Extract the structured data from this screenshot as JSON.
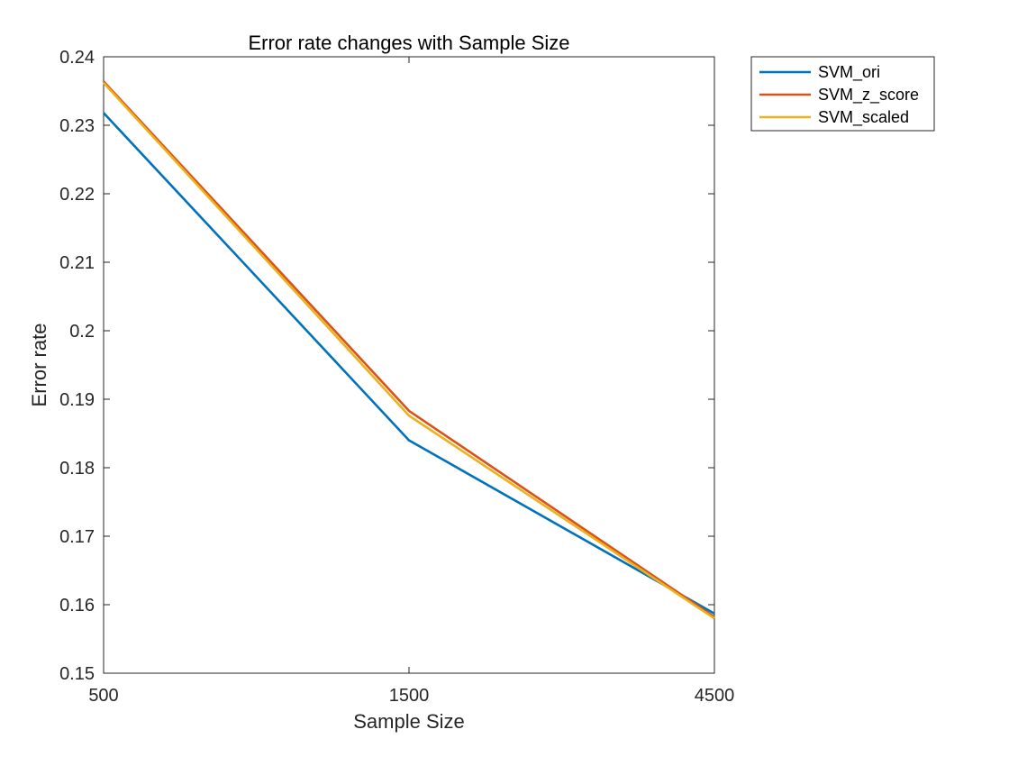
{
  "chart_data": {
    "type": "line",
    "title": "Error rate changes with Sample Size",
    "xlabel": "Sample Size",
    "ylabel": "Error rate",
    "x": [
      "500",
      "1500",
      "4500"
    ],
    "ylim": [
      0.15,
      0.24
    ],
    "yticks": [
      "0.15",
      "0.16",
      "0.17",
      "0.18",
      "0.19",
      "0.2",
      "0.21",
      "0.22",
      "0.23",
      "0.24"
    ],
    "grid": false,
    "legend_position": "outside top-right",
    "series": [
      {
        "name": "SVM_ori",
        "color": "#0072BD",
        "values": [
          0.2318,
          0.184,
          0.1587
        ]
      },
      {
        "name": "SVM_z_score",
        "color": "#D95319",
        "values": [
          0.2364,
          0.1883,
          0.1582
        ]
      },
      {
        "name": "SVM_scaled",
        "color": "#EDB120",
        "values": [
          0.2362,
          0.1876,
          0.158
        ]
      }
    ]
  }
}
